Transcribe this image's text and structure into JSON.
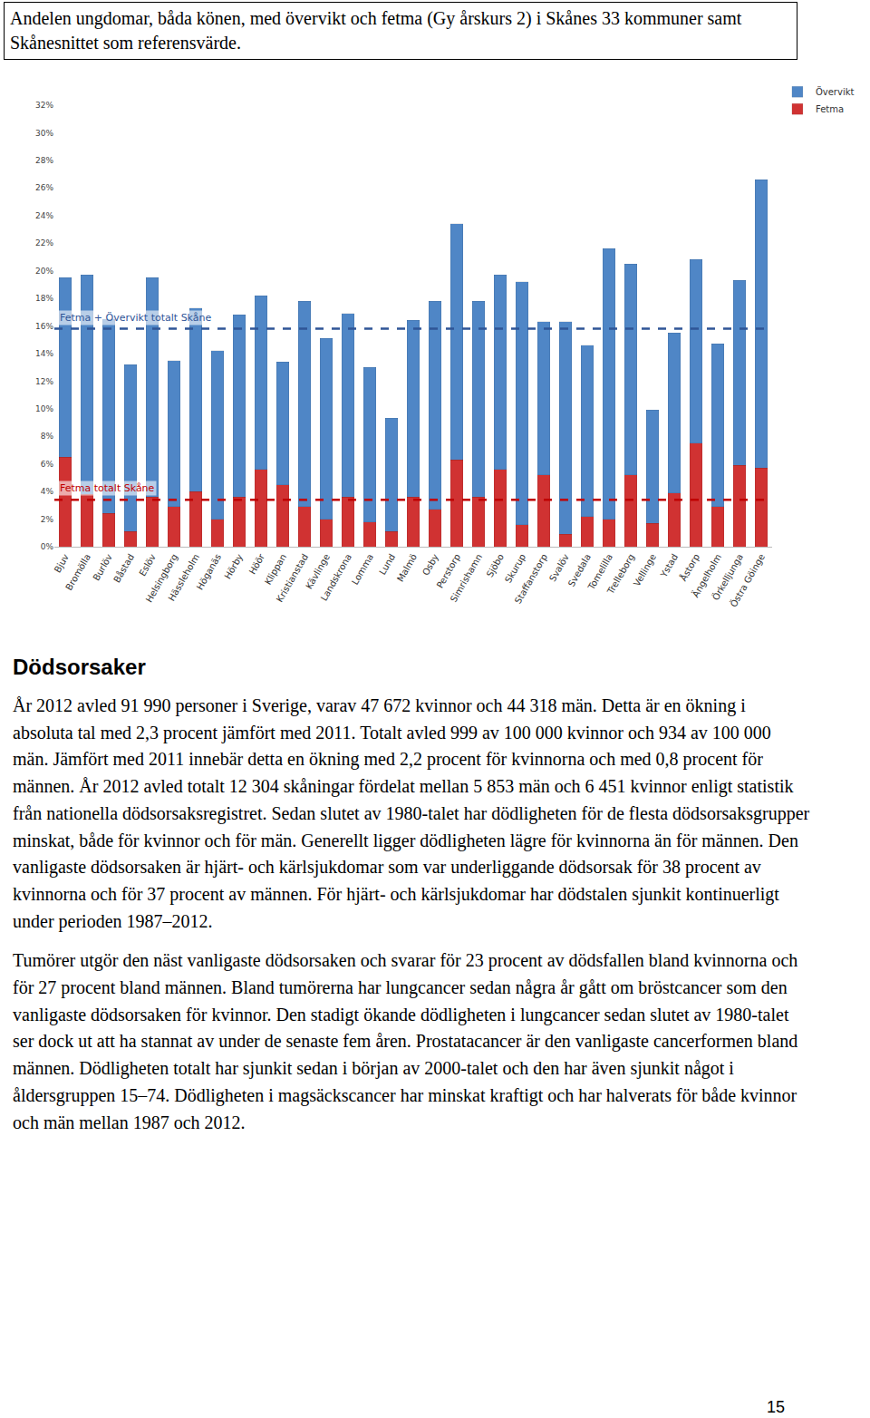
{
  "header": {
    "title": "Andelen ungdomar, båda könen, med övervikt och fetma (Gy årskurs 2) i Skånes 33 kommuner samt Skånesnittet som referensvärde."
  },
  "chart_data": {
    "type": "bar",
    "stacked": true,
    "grid": false,
    "legend": "top right",
    "categories": [
      "Bjuv",
      "Bromölla",
      "Burlöv",
      "Båstad",
      "Eslöv",
      "Helsingborg",
      "Hässleholm",
      "Höganäs",
      "Hörby",
      "Höör",
      "Klippan",
      "Kristianstad",
      "Kävlinge",
      "Landskrona",
      "Lomma",
      "Lund",
      "Malmö",
      "Osby",
      "Perstorp",
      "Simrishamn",
      "Sjöbo",
      "Skurup",
      "Staffanstorp",
      "Svalöv",
      "Svedala",
      "Tomelilla",
      "Trelleborg",
      "Vellinge",
      "Ystad",
      "Åstorp",
      "Ängelholm",
      "Örkelljunga",
      "Östra Göinge"
    ],
    "series": [
      {
        "name": "Fetma",
        "color": "#d03232",
        "values": [
          6.5,
          3.8,
          2.4,
          1.1,
          3.6,
          2.9,
          4.0,
          2.0,
          3.6,
          5.6,
          4.5,
          2.9,
          2.0,
          3.6,
          1.8,
          1.1,
          3.6,
          2.7,
          6.3,
          3.6,
          5.6,
          1.6,
          5.2,
          0.9,
          2.2,
          2.0,
          5.2,
          1.7,
          3.9,
          7.5,
          2.9,
          5.9,
          5.7
        ]
      },
      {
        "name": "Övervikt",
        "color": "#4f86c6",
        "values": [
          13.0,
          15.9,
          14.1,
          12.1,
          15.9,
          10.6,
          13.3,
          12.2,
          13.2,
          12.6,
          8.9,
          14.9,
          13.1,
          13.3,
          11.2,
          8.2,
          12.8,
          15.1,
          17.1,
          14.2,
          14.1,
          17.6,
          11.1,
          15.4,
          12.4,
          19.6,
          15.3,
          8.2,
          11.6,
          13.3,
          11.8,
          13.4,
          20.9
        ]
      }
    ],
    "reference_lines": [
      {
        "label": "Fetma + Övervikt totalt Skåne",
        "value": 15.8,
        "color": "#2f5597"
      },
      {
        "label": "Fetma totalt Skåne",
        "value": 3.4,
        "color": "#c00000"
      }
    ],
    "ylim": [
      0,
      32
    ],
    "yticks": [
      {
        "value": 0,
        "label": "0%"
      },
      {
        "value": 2,
        "label": "2%"
      },
      {
        "value": 4,
        "label": "4%"
      },
      {
        "value": 6,
        "label": "6%"
      },
      {
        "value": 8,
        "label": "8%"
      },
      {
        "value": 10,
        "label": "10%"
      },
      {
        "value": 12,
        "label": "12%"
      },
      {
        "value": 14,
        "label": "14%"
      },
      {
        "value": 16,
        "label": "16%"
      },
      {
        "value": 18,
        "label": "18%"
      },
      {
        "value": 20,
        "label": "20%"
      },
      {
        "value": 22,
        "label": "22%"
      },
      {
        "value": 24,
        "label": "24%"
      },
      {
        "value": 26,
        "label": "26%"
      },
      {
        "value": 28,
        "label": "28%"
      },
      {
        "value": 30,
        "label": "30%"
      },
      {
        "value": 32,
        "label": "32%"
      }
    ]
  },
  "section": {
    "heading": "Dödsorsaker",
    "paragraphs": [
      "År 2012 avled 91 990 personer i Sverige, varav 47 672 kvinnor och 44 318 män. Detta är en ökning i absoluta tal med 2,3 procent jämfört med 2011. Totalt avled 999 av 100 000 kvinnor och 934 av 100 000 män. Jämfört med 2011 innebär detta en ökning med 2,2 procent för kvinnorna och med 0,8 procent för männen. År 2012 avled totalt 12 304 skåningar fördelat mellan 5 853 män och 6 451 kvinnor enligt statistik från nationella dödsorsaksregistret. Sedan slutet av 1980-talet har dödligheten för de flesta dödsorsaksgrupper minskat, både för kvinnor och för män. Generellt ligger dödligheten lägre för kvinnorna än för männen. Den vanligaste dödsorsaken är hjärt- och kärlsjukdomar som var underliggande dödsorsak för 38 procent av kvinnorna och för 37 procent av männen. För hjärt- och kärlsjukdomar har dödstalen sjunkit kontinuerligt under perioden 1987–2012.",
      "Tumörer utgör den näst vanligaste dödsorsaken och svarar för 23 procent av dödsfallen bland kvinnorna och för 27 procent bland männen. Bland tumörerna har lungcancer sedan några år gått om bröstcancer som den vanligaste dödsorsaken för kvinnor. Den stadigt ökande dödligheten i lungcancer sedan slutet av 1980-talet ser dock ut att ha stannat av under de senaste fem åren. Prostatacancer är den vanligaste cancerformen bland männen. Dödligheten totalt har sjunkit sedan i början av 2000-talet och den har även sjunkit något i åldersgruppen 15–74. Dödligheten i magsäckscancer har minskat kraftigt och har halverats för både kvinnor och män mellan 1987 och 2012."
    ]
  },
  "page_number": 15
}
